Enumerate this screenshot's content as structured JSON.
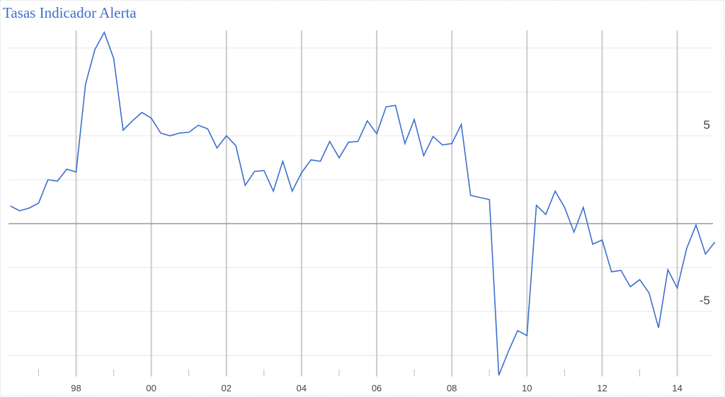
{
  "chart_data": {
    "type": "line",
    "title": "Tasas Indicador Alerta",
    "x": [
      1996.25,
      1996.5,
      1996.75,
      1997,
      1997.25,
      1997.5,
      1997.75,
      1998,
      1998.25,
      1998.5,
      1998.75,
      1999,
      1999.25,
      1999.5,
      1999.75,
      2000,
      2000.25,
      2000.5,
      2000.75,
      2001,
      2001.25,
      2001.5,
      2001.75,
      2002,
      2002.25,
      2002.5,
      2002.75,
      2003,
      2003.25,
      2003.5,
      2003.75,
      2004,
      2004.25,
      2004.5,
      2004.75,
      2005,
      2005.25,
      2005.5,
      2005.75,
      2006,
      2006.25,
      2006.5,
      2006.75,
      2007,
      2007.25,
      2007.5,
      2007.75,
      2008,
      2008.25,
      2008.5,
      2008.75,
      2009,
      2009.25,
      2009.5,
      2009.75,
      2010,
      2010.25,
      2010.5,
      2010.75,
      2011,
      2011.25,
      2011.5,
      2011.75,
      2012,
      2012.25,
      2012.5,
      2012.75,
      2013,
      2013.25,
      2013.5,
      2013.75,
      2014,
      2014.25,
      2014.5,
      2014.75,
      2015
    ],
    "series": [
      {
        "color": "#3d6fcc",
        "values": [
          1.0,
          0.73,
          0.89,
          1.17,
          2.5,
          2.42,
          3.1,
          2.94,
          7.94,
          9.92,
          10.89,
          9.4,
          5.32,
          5.85,
          6.33,
          6.01,
          5.16,
          5.0,
          5.16,
          5.2,
          5.6,
          5.4,
          4.31,
          5.0,
          4.44,
          2.18,
          2.98,
          3.02,
          1.85,
          3.55,
          1.85,
          2.9,
          3.63,
          3.55,
          4.68,
          3.75,
          4.64,
          4.68,
          5.85,
          5.12,
          6.65,
          6.73,
          4.56,
          5.93,
          3.87,
          4.96,
          4.48,
          4.56,
          5.65,
          1.61,
          1.49,
          1.37,
          -8.63,
          -7.3,
          -6.09,
          -6.37,
          1.05,
          0.52,
          1.85,
          0.93,
          -0.48,
          0.93,
          -1.17,
          -0.93,
          -2.74,
          -2.66,
          -3.59,
          -3.19,
          -3.95,
          -5.93,
          -2.62,
          -3.67,
          -1.41,
          -0.08,
          -1.73,
          -1.05
        ]
      }
    ],
    "xlim": [
      1996.2,
      2014.95
    ],
    "xticks": [
      {
        "value": 1998,
        "label": "98"
      },
      {
        "value": 2000,
        "label": "00"
      },
      {
        "value": 2002,
        "label": "02"
      },
      {
        "value": 2004,
        "label": "04"
      },
      {
        "value": 2006,
        "label": "06"
      },
      {
        "value": 2008,
        "label": "08"
      },
      {
        "value": 2010,
        "label": "10"
      },
      {
        "value": 2012,
        "label": "12"
      },
      {
        "value": 2014,
        "label": "14"
      }
    ],
    "minor_xticks": [
      1997,
      1999,
      2001,
      2003,
      2005,
      2007,
      2009,
      2011,
      2013
    ],
    "ylim": [
      -8.7,
      11
    ],
    "yticks": [
      -5,
      5
    ],
    "minor_yticks": [
      -7.5,
      -2.5,
      2.5,
      7.5,
      10
    ],
    "baseline": 0,
    "grid": true
  }
}
